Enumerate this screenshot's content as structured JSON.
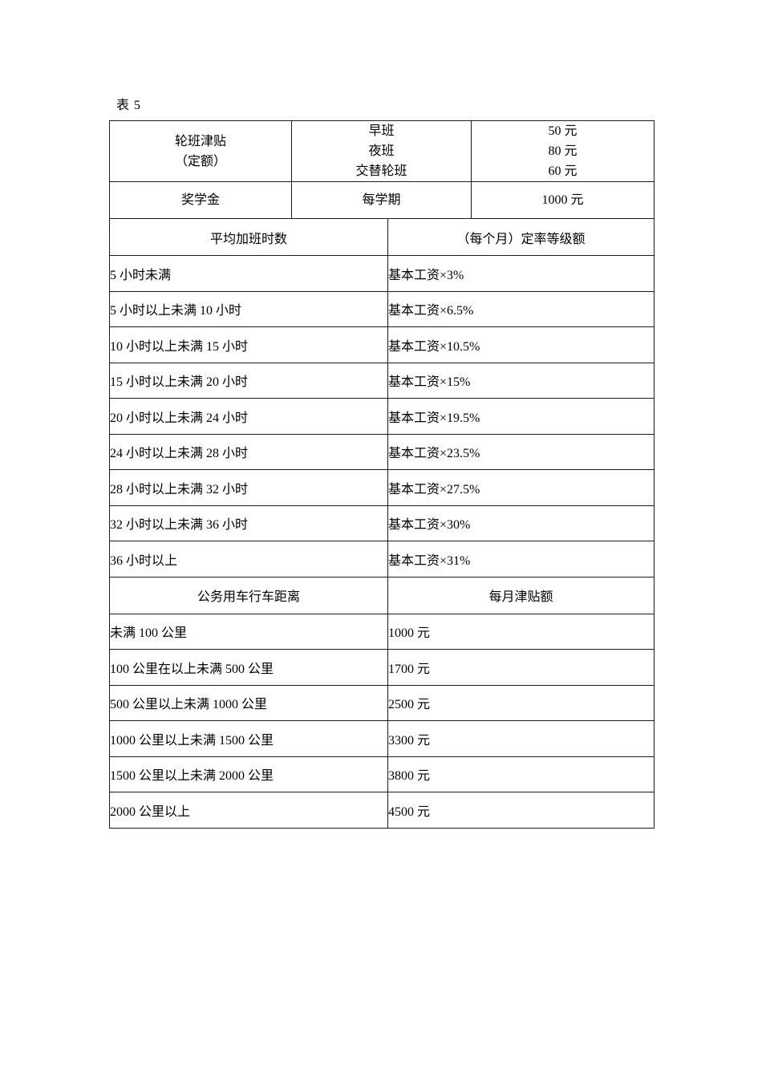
{
  "caption": "表 5",
  "colors": {
    "background": "#ffffff",
    "border": "#1c1c1c",
    "text": "#000000"
  },
  "allowance_section": {
    "rows": [
      {
        "category": [
          "轮班津贴",
          "（定额）"
        ],
        "items": [
          "早班",
          "夜班",
          "交替轮班"
        ],
        "amounts": [
          "50 元",
          "80 元",
          "60 元"
        ]
      },
      {
        "category": [
          "奖学金"
        ],
        "items": [
          "每学期"
        ],
        "amounts": [
          "1000 元"
        ]
      }
    ]
  },
  "overtime_section": {
    "header": [
      "平均加班时数",
      "（每个月）定率等级额"
    ],
    "rows": [
      [
        "5 小时未满",
        "基本工资×3%"
      ],
      [
        "5 小时以上未满 10 小时",
        "基本工资×6.5%"
      ],
      [
        "10 小时以上未满 15 小时",
        "基本工资×10.5%"
      ],
      [
        "15 小时以上未满 20 小时",
        "基本工资×15%"
      ],
      [
        "20 小时以上未满 24 小时",
        "基本工资×19.5%"
      ],
      [
        "24 小时以上未满 28 小时",
        "基本工资×23.5%"
      ],
      [
        "28 小时以上未满 32 小时",
        "基本工资×27.5%"
      ],
      [
        "32 小时以上未满 36 小时",
        "基本工资×30%"
      ],
      [
        "36 小时以上",
        "基本工资×31%"
      ]
    ]
  },
  "vehicle_section": {
    "header": [
      "公务用车行车距离",
      "每月津贴额"
    ],
    "rows": [
      [
        "未满 100 公里",
        "1000 元"
      ],
      [
        "100 公里在以上未满 500 公里",
        "1700 元"
      ],
      [
        "500 公里以上未满 1000 公里",
        "2500 元"
      ],
      [
        "1000 公里以上未满 1500 公里",
        "3300 元"
      ],
      [
        "1500 公里以上未满 2000 公里",
        "3800 元"
      ],
      [
        "2000 公里以上",
        "4500 元"
      ]
    ]
  }
}
